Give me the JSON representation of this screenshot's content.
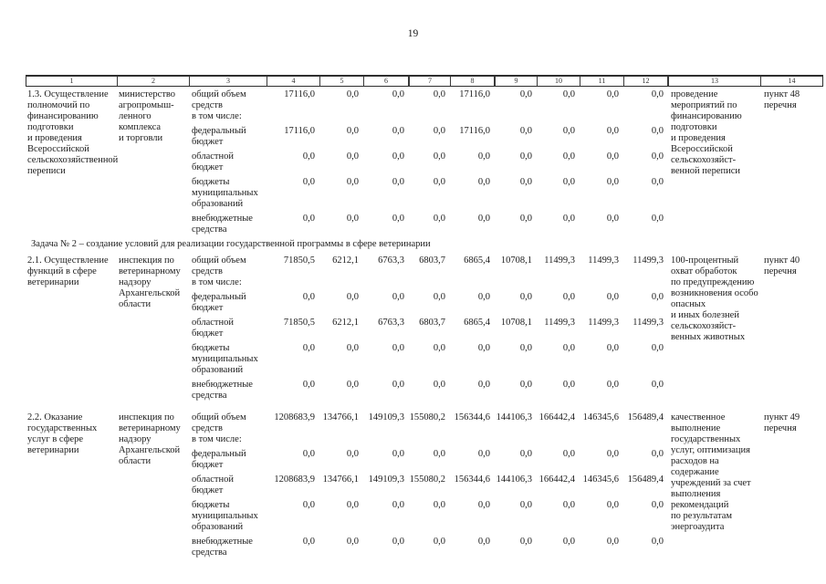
{
  "page": {
    "number": "19"
  },
  "table": {
    "columns": [
      "1",
      "2",
      "3",
      "4",
      "5",
      "6",
      "7",
      "8",
      "9",
      "10",
      "11",
      "12",
      "13",
      "14"
    ],
    "section2_heading": "Задача № 2 – создание условий для реализации государственной программы в сфере ветеринарии",
    "rows": [
      {
        "id": "1.3",
        "activity": "1.3. Осуществление\nполномочий по\nфинансированию\nподготовки\nи проведения\nВсероссийской\nсельскохозяйственной\nпереписи",
        "executor": "министерство\nагропромыш-\nленного\nкомплекса\nи торговли",
        "measures": [
          {
            "label": "общий объем\nсредств",
            "values": [
              "17116,0",
              "0,0",
              "0,0",
              "0,0",
              "17116,0",
              "0,0",
              "0,0",
              "0,0",
              "0,0"
            ]
          },
          {
            "label": "в том числе:",
            "values": []
          },
          {
            "label": "федеральный\nбюджет",
            "values": [
              "17116,0",
              "0,0",
              "0,0",
              "0,0",
              "17116,0",
              "0,0",
              "0,0",
              "0,0",
              "0,0"
            ]
          },
          {
            "label": "областной\nбюджет",
            "values": [
              "0,0",
              "0,0",
              "0,0",
              "0,0",
              "0,0",
              "0,0",
              "0,0",
              "0,0",
              "0,0"
            ]
          },
          {
            "label": "бюджеты\nмуниципальных\nобразований",
            "values": [
              "0,0",
              "0,0",
              "0,0",
              "0,0",
              "0,0",
              "0,0",
              "0,0",
              "0,0",
              "0,0"
            ]
          },
          {
            "label": "внебюджетные\nсредства",
            "values": [
              "0,0",
              "0,0",
              "0,0",
              "0,0",
              "0,0",
              "0,0",
              "0,0",
              "0,0",
              "0,0"
            ]
          }
        ],
        "expected_result": "проведение\nмероприятий по\nфинансированию\nподготовки\nи проведения\nВсероссийской\nсельскохозяйст-\nвенной переписи",
        "basis": "пункт 48\nперечня"
      },
      {
        "id": "2.1",
        "activity": "2.1. Осуществление\nфункций в сфере\nветеринарии",
        "executor": "инспекция по\nветеринарному\nнадзору\nАрхангельской\nобласти",
        "measures": [
          {
            "label": "общий объем\nсредств",
            "values": [
              "71850,5",
              "6212,1",
              "6763,3",
              "6803,7",
              "6865,4",
              "10708,1",
              "11499,3",
              "11499,3",
              "11499,3"
            ]
          },
          {
            "label": "в том числе:",
            "values": []
          },
          {
            "label": "федеральный\nбюджет",
            "values": [
              "0,0",
              "0,0",
              "0,0",
              "0,0",
              "0,0",
              "0,0",
              "0,0",
              "0,0",
              "0,0"
            ]
          },
          {
            "label": "областной бюджет",
            "values": [
              "71850,5",
              "6212,1",
              "6763,3",
              "6803,7",
              "6865,4",
              "10708,1",
              "11499,3",
              "11499,3",
              "11499,3"
            ]
          },
          {
            "label": "бюджеты\nмуниципальных\nобразований",
            "values": [
              "0,0",
              "0,0",
              "0,0",
              "0,0",
              "0,0",
              "0,0",
              "0,0",
              "0,0",
              "0,0"
            ]
          },
          {
            "label": "внебюджетные\nсредства",
            "values": [
              "0,0",
              "0,0",
              "0,0",
              "0,0",
              "0,0",
              "0,0",
              "0,0",
              "0,0",
              "0,0"
            ]
          }
        ],
        "expected_result": "100-процентный\nохват обработок\nпо предупреждению\nвозникновения особо\nопасных\nи иных болезней\nсельскохозяйст-\nвенных животных",
        "basis": "пункт 40\nперечня"
      },
      {
        "id": "2.2",
        "activity": "2.2. Оказание\nгосударственных\nуслуг в сфере\nветеринарии",
        "executor": "инспекция по\nветеринарному\nнадзору\nАрхангельской\nобласти",
        "measures": [
          {
            "label": "общий объем\nсредств",
            "values": [
              "1208683,9",
              "134766,1",
              "149109,3",
              "155080,2",
              "156344,6",
              "144106,3",
              "166442,4",
              "146345,6",
              "156489,4"
            ]
          },
          {
            "label": "в том числе:",
            "values": []
          },
          {
            "label": "федеральный\nбюджет",
            "values": [
              "0,0",
              "0,0",
              "0,0",
              "0,0",
              "0,0",
              "0,0",
              "0,0",
              "0,0",
              "0,0"
            ]
          },
          {
            "label": "областной бюджет",
            "values": [
              "1208683,9",
              "134766,1",
              "149109,3",
              "155080,2",
              "156344,6",
              "144106,3",
              "166442,4",
              "146345,6",
              "156489,4"
            ]
          },
          {
            "label": "бюджеты\nмуниципальных\nобразований",
            "values": [
              "0,0",
              "0,0",
              "0,0",
              "0,0",
              "0,0",
              "0,0",
              "0,0",
              "0,0",
              "0,0"
            ]
          },
          {
            "label": "внебюджетные\nсредства",
            "values": [
              "0,0",
              "0,0",
              "0,0",
              "0,0",
              "0,0",
              "0,0",
              "0,0",
              "0,0",
              "0,0"
            ]
          }
        ],
        "expected_result": "качественное\nвыполнение\nгосударственных\nуслуг, оптимизация\nрасходов на\nсодержание\nучреждений за счет\nвыполнения\nрекомендаций\nпо результатам\nэнергоаудита",
        "basis": "пункт 49\nперечня"
      }
    ]
  }
}
